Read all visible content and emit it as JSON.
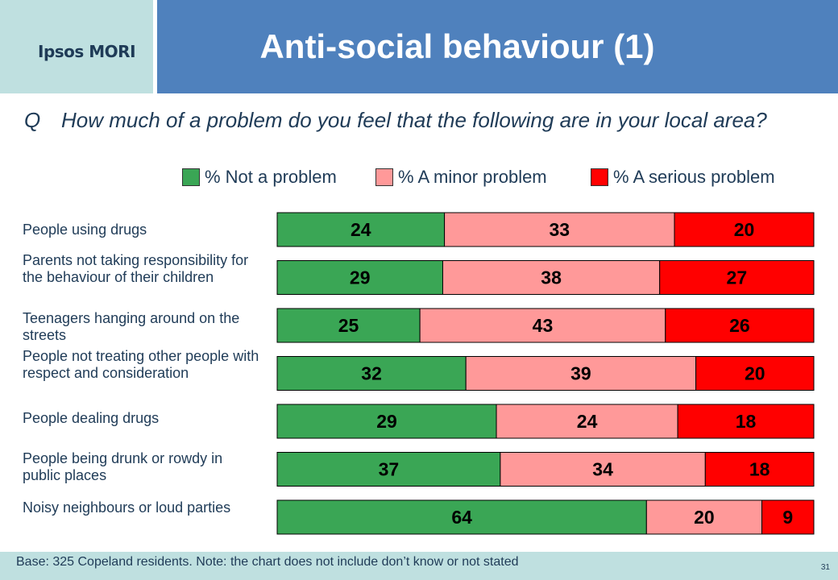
{
  "logo": {
    "text": "Ipsos MORI"
  },
  "title": "Anti-social behaviour (1)",
  "question": {
    "marker": "Q",
    "text": "How much of a problem do you feel that the following are in your local area?"
  },
  "colors": {
    "not_a_problem": "#3aa655",
    "minor_problem": "#ff9999",
    "serious_problem": "#ff0000",
    "header_blue": "#4f81bd",
    "panel_teal": "#bfe0e0"
  },
  "footer": {
    "note": "Base: 325 Copeland residents.  Note: the chart does not include don’t know or not stated",
    "page_number": "31"
  },
  "chart_data": {
    "type": "bar",
    "orientation": "horizontal",
    "stacked": true,
    "legend_position": "top",
    "grid": false,
    "categories": [
      "People using drugs",
      "Parents not taking responsibility for the behaviour of their children",
      "Teenagers hanging around on the streets",
      "People not treating other people with respect and consideration",
      "People dealing drugs",
      "People being drunk or rowdy in public places",
      "Noisy neighbours or loud parties"
    ],
    "series": [
      {
        "name": "% Not a problem",
        "values": [
          24,
          29,
          25,
          32,
          29,
          37,
          64
        ]
      },
      {
        "name": "% A minor problem",
        "values": [
          33,
          38,
          43,
          39,
          24,
          34,
          20
        ]
      },
      {
        "name": "% A serious problem",
        "values": [
          20,
          27,
          26,
          20,
          18,
          18,
          9
        ]
      }
    ]
  }
}
